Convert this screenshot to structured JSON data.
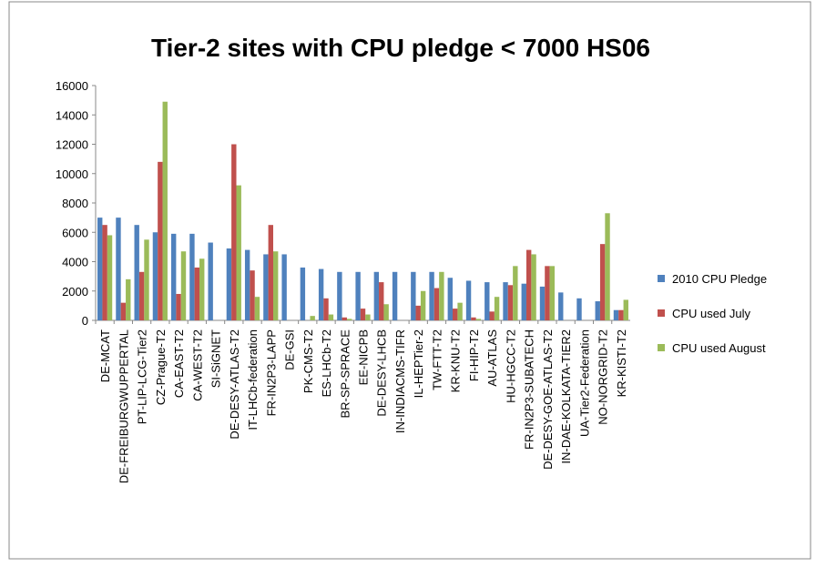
{
  "chart_data": {
    "type": "bar",
    "title": "Tier-2 sites with CPU pledge < 7000 HS06",
    "categories": [
      "DE-MCAT",
      "DE-FREIBURGWUPPERTAL",
      "PT-LIP-LCG-Tier2",
      "CZ-Prague-T2",
      "CA-EAST-T2",
      "CA-WEST-T2",
      "SI-SiGNET",
      "DE-DESY-ATLAS-T2",
      "IT-LHCb-federation",
      "FR-IN2P3-LAPP",
      "DE-GSI",
      "PK-CMS-T2",
      "ES-LHCb-T2",
      "BR-SP-SPRACE",
      "EE-NICPB",
      "DE-DESY-LHCB",
      "IN-INDIACMS-TIFR",
      "IL-HEPTier-2",
      "TW-FTT-T2",
      "KR-KNU-T2",
      "FI-HIP-T2",
      "AU-ATLAS",
      "HU-HGCC-T2",
      "FR-IN2P3-SUBATECH",
      "DE-DESY-GOE-ATLAS-T2",
      "IN-DAE-KOLKATA-TIER2",
      "UA-Tier2-Federation",
      "NO-NORGRID-T2",
      "KR-KISTI-T2"
    ],
    "series": [
      {
        "name": "2010 CPU Pledge",
        "color": "#4f81bd",
        "values": [
          7000,
          7000,
          6500,
          6000,
          5900,
          5900,
          5300,
          4900,
          4800,
          4500,
          4500,
          3600,
          3500,
          3300,
          3300,
          3300,
          3300,
          3300,
          3300,
          2900,
          2700,
          2600,
          2600,
          2500,
          2300,
          1900,
          1500,
          1300,
          700
        ]
      },
      {
        "name": "CPU used July",
        "color": "#c0504d",
        "values": [
          6500,
          1200,
          3300,
          10800,
          1800,
          3600,
          0,
          12000,
          3400,
          6500,
          0,
          0,
          1500,
          200,
          800,
          2600,
          0,
          1000,
          2200,
          800,
          200,
          600,
          2400,
          4800,
          3700,
          0,
          0,
          5200,
          700
        ]
      },
      {
        "name": "CPU used August",
        "color": "#9bbb59",
        "values": [
          5800,
          2800,
          5500,
          14900,
          4700,
          4200,
          0,
          9200,
          1600,
          4700,
          0,
          300,
          400,
          100,
          400,
          1100,
          0,
          2000,
          3300,
          1200,
          100,
          1600,
          3700,
          4500,
          3700,
          0,
          0,
          7300,
          1400
        ]
      }
    ],
    "ylim": [
      0,
      16000
    ],
    "yticks": [
      0,
      2000,
      4000,
      6000,
      8000,
      10000,
      12000,
      14000,
      16000
    ],
    "grid": false,
    "legend": "right"
  }
}
